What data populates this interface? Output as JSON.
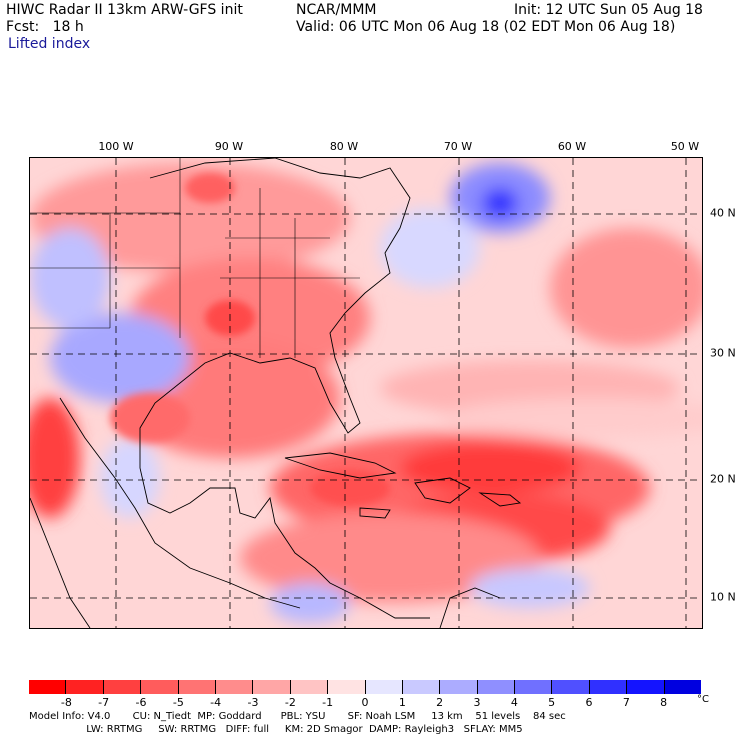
{
  "header": {
    "model_title": "HIWC Radar II 13km ARW-GFS init",
    "org": "NCAR/MMM",
    "init": "Init: 12 UTC Sun 05 Aug 18",
    "fcst": "Fcst:   18 h",
    "valid": "Valid: 06 UTC Mon 06 Aug 18 (02 EDT Mon 06 Aug 18)",
    "field": "Lifted index"
  },
  "map": {
    "longitude_labels": [
      "100 W",
      "90 W",
      "80 W",
      "70 W",
      "60 W",
      "50 W"
    ],
    "latitude_labels": [
      "40 N",
      "30 N",
      "20 N",
      "10 N"
    ]
  },
  "colorbar": {
    "unit": "°C",
    "labels": [
      "-8",
      "-7",
      "-6",
      "-5",
      "-4",
      "-3",
      "-2",
      "-1",
      "0",
      "1",
      "2",
      "3",
      "4",
      "5",
      "6",
      "7",
      "8"
    ],
    "colors": [
      "#ff0000",
      "#ff2222",
      "#ff4040",
      "#ff5c5c",
      "#ff7373",
      "#ff8c8c",
      "#ffa6a6",
      "#ffc4c4",
      "#ffe3e3",
      "#e6e6ff",
      "#c9c9ff",
      "#acacff",
      "#8f8fff",
      "#7070ff",
      "#5050ff",
      "#3030ff",
      "#1414ff",
      "#0000e0"
    ]
  },
  "footer": {
    "line1": "Model Info: V4.0       CU: N_Tiedt  MP: Goddard      PBL: YSU       SF: Noah LSM     13 km    51 levels    84 sec",
    "line2": "                  LW: RRTMG     SW: RRTMG   DIFF: full     KM: 2D Smagor  DAMP: Rayleigh3   SFLAY: MM5"
  }
}
